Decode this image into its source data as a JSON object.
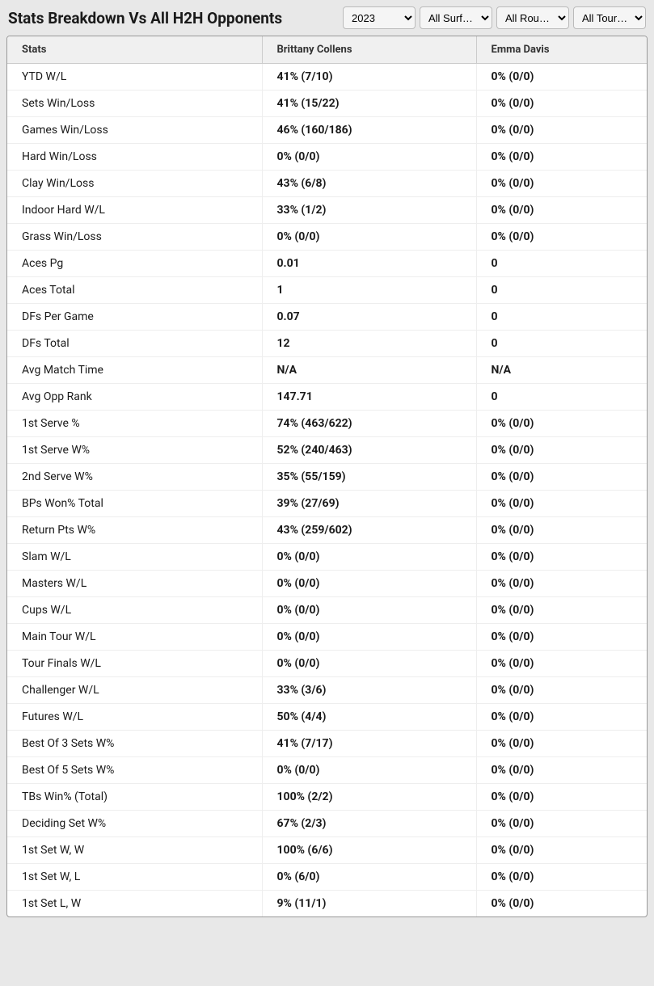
{
  "header": {
    "title": "Stats Breakdown Vs All H2H Opponents"
  },
  "filters": {
    "year": {
      "selected": "2023"
    },
    "surface": {
      "selected": "All Surf…"
    },
    "round": {
      "selected": "All Rou…"
    },
    "tournament": {
      "selected": "All Tour…"
    }
  },
  "table": {
    "columns": [
      "Stats",
      "Brittany Collens",
      "Emma Davis"
    ],
    "rows": [
      {
        "stat": "YTD W/L",
        "p1": "41% (7/10)",
        "p2": "0% (0/0)"
      },
      {
        "stat": "Sets Win/Loss",
        "p1": "41% (15/22)",
        "p2": "0% (0/0)"
      },
      {
        "stat": "Games Win/Loss",
        "p1": "46% (160/186)",
        "p2": "0% (0/0)"
      },
      {
        "stat": "Hard Win/Loss",
        "p1": "0% (0/0)",
        "p2": "0% (0/0)"
      },
      {
        "stat": "Clay Win/Loss",
        "p1": "43% (6/8)",
        "p2": "0% (0/0)"
      },
      {
        "stat": "Indoor Hard W/L",
        "p1": "33% (1/2)",
        "p2": "0% (0/0)"
      },
      {
        "stat": "Grass Win/Loss",
        "p1": "0% (0/0)",
        "p2": "0% (0/0)"
      },
      {
        "stat": "Aces Pg",
        "p1": "0.01",
        "p2": "0"
      },
      {
        "stat": "Aces Total",
        "p1": "1",
        "p2": "0"
      },
      {
        "stat": "DFs Per Game",
        "p1": "0.07",
        "p2": "0"
      },
      {
        "stat": "DFs Total",
        "p1": "12",
        "p2": "0"
      },
      {
        "stat": "Avg Match Time",
        "p1": "N/A",
        "p2": "N/A"
      },
      {
        "stat": "Avg Opp Rank",
        "p1": "147.71",
        "p2": "0"
      },
      {
        "stat": "1st Serve %",
        "p1": "74% (463/622)",
        "p2": "0% (0/0)"
      },
      {
        "stat": "1st Serve W%",
        "p1": "52% (240/463)",
        "p2": "0% (0/0)"
      },
      {
        "stat": "2nd Serve W%",
        "p1": "35% (55/159)",
        "p2": "0% (0/0)"
      },
      {
        "stat": "BPs Won% Total",
        "p1": "39% (27/69)",
        "p2": "0% (0/0)"
      },
      {
        "stat": "Return Pts W%",
        "p1": "43% (259/602)",
        "p2": "0% (0/0)"
      },
      {
        "stat": "Slam W/L",
        "p1": "0% (0/0)",
        "p2": "0% (0/0)"
      },
      {
        "stat": "Masters W/L",
        "p1": "0% (0/0)",
        "p2": "0% (0/0)"
      },
      {
        "stat": "Cups W/L",
        "p1": "0% (0/0)",
        "p2": "0% (0/0)"
      },
      {
        "stat": "Main Tour W/L",
        "p1": "0% (0/0)",
        "p2": "0% (0/0)"
      },
      {
        "stat": "Tour Finals W/L",
        "p1": "0% (0/0)",
        "p2": "0% (0/0)"
      },
      {
        "stat": "Challenger W/L",
        "p1": "33% (3/6)",
        "p2": "0% (0/0)"
      },
      {
        "stat": "Futures W/L",
        "p1": "50% (4/4)",
        "p2": "0% (0/0)"
      },
      {
        "stat": "Best Of 3 Sets W%",
        "p1": "41% (7/17)",
        "p2": "0% (0/0)"
      },
      {
        "stat": "Best Of 5 Sets W%",
        "p1": "0% (0/0)",
        "p2": "0% (0/0)"
      },
      {
        "stat": "TBs Win% (Total)",
        "p1": "100% (2/2)",
        "p2": "0% (0/0)"
      },
      {
        "stat": "Deciding Set W%",
        "p1": "67% (2/3)",
        "p2": "0% (0/0)"
      },
      {
        "stat": "1st Set W, W",
        "p1": "100% (6/6)",
        "p2": "0% (0/0)"
      },
      {
        "stat": "1st Set W, L",
        "p1": "0% (6/0)",
        "p2": "0% (0/0)"
      },
      {
        "stat": "1st Set L, W",
        "p1": "9% (11/1)",
        "p2": "0% (0/0)"
      }
    ]
  },
  "styling": {
    "background_color": "#e8e8e8",
    "table_background": "#ffffff",
    "header_row_background": "#f0f0f0",
    "border_color": "#999999",
    "row_border_color": "#eeeeee",
    "text_color": "#1a1a1a",
    "title_fontsize": 19,
    "header_fontsize": 13,
    "cell_fontsize": 14
  }
}
